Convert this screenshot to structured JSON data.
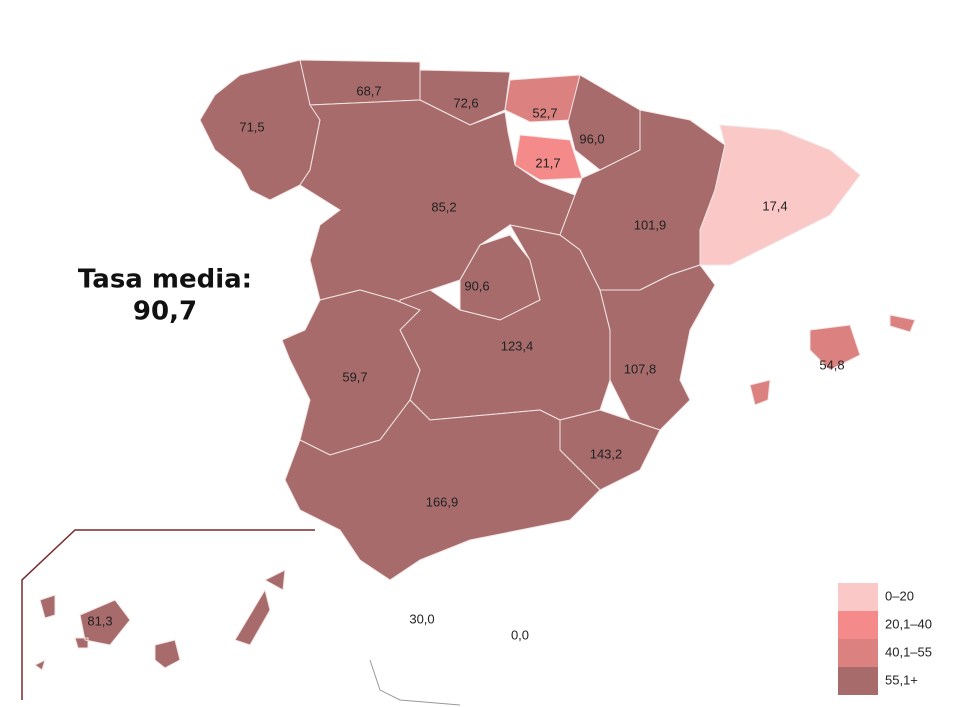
{
  "summary": {
    "title": "Tasa media:",
    "value": "90,7"
  },
  "regions": [
    {
      "label": "71,5",
      "color": "#a86b6b"
    },
    {
      "label": "68,7",
      "color": "#a86b6b"
    },
    {
      "label": "72,6",
      "color": "#a86b6b"
    },
    {
      "label": "52,7",
      "color": "#db8180"
    },
    {
      "label": "96,0",
      "color": "#a86b6b"
    },
    {
      "label": "21,7",
      "color": "#f48a8a"
    },
    {
      "label": "85,2",
      "color": "#a86b6b"
    },
    {
      "label": "101,9",
      "color": "#a86b6b"
    },
    {
      "label": "17,4",
      "color": "#fbc8c8"
    },
    {
      "label": "90,6",
      "color": "#a86b6b"
    },
    {
      "label": "123,4",
      "color": "#a86b6b"
    },
    {
      "label": "59,7",
      "color": "#a86b6b"
    },
    {
      "label": "107,8",
      "color": "#a86b6b"
    },
    {
      "label": "143,2",
      "color": "#a86b6b"
    },
    {
      "label": "166,9",
      "color": "#a86b6b"
    },
    {
      "label": "54,8",
      "color": "#db8180"
    },
    {
      "label": "81,3",
      "color": "#a86b6b"
    },
    {
      "label": "30,0",
      "color": "#ffffff"
    },
    {
      "label": "0,0",
      "color": "#ffffff"
    }
  ],
  "legend": [
    {
      "label": "0–20",
      "color": "#fbc8c8"
    },
    {
      "label": "20,1–40",
      "color": "#f48a8a"
    },
    {
      "label": "40,1–55",
      "color": "#db8180"
    },
    {
      "label": "55,1+",
      "color": "#a76b6b"
    }
  ]
}
